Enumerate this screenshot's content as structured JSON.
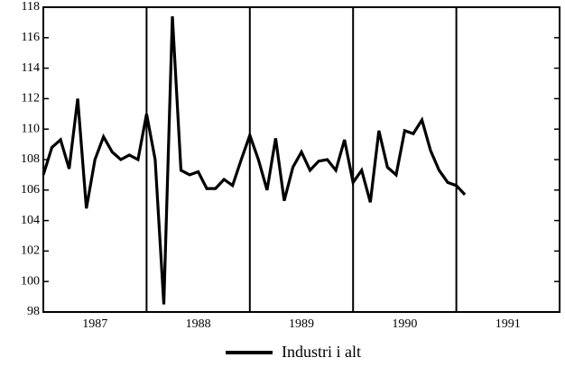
{
  "chart_data": {
    "type": "line",
    "x": [
      1987,
      1987.083,
      1987.167,
      1987.25,
      1987.333,
      1987.417,
      1987.5,
      1987.583,
      1987.667,
      1987.75,
      1987.833,
      1987.917,
      1988,
      1988.083,
      1988.167,
      1988.25,
      1988.333,
      1988.417,
      1988.5,
      1988.583,
      1988.667,
      1988.75,
      1988.833,
      1988.917,
      1989,
      1989.083,
      1989.167,
      1989.25,
      1989.333,
      1989.417,
      1989.5,
      1989.583,
      1989.667,
      1989.75,
      1989.833,
      1989.917,
      1990,
      1990.083,
      1990.167,
      1990.25,
      1990.333,
      1990.417,
      1990.5,
      1990.583,
      1990.667,
      1990.75,
      1990.833,
      1990.917,
      1991,
      1991.083
    ],
    "series": [
      {
        "name": "Industri i alt",
        "color": "#000000",
        "values": [
          107,
          108.8,
          109.3,
          107.4,
          112,
          104.8,
          108,
          109.5,
          108.5,
          108,
          108.3,
          108,
          111,
          108,
          98.5,
          117.4,
          107.3,
          107,
          107.2,
          106.1,
          106.1,
          106.7,
          106.3,
          108,
          109.6,
          108,
          106,
          109.4,
          105.3,
          107.5,
          108.5,
          107.3,
          107.9,
          108,
          107.3,
          109.3,
          106.5,
          107.3,
          105.2,
          109.9,
          107.5,
          107,
          109.9,
          109.7,
          110.6,
          108.6,
          107.3,
          106.5,
          106.3,
          105.7
        ]
      }
    ],
    "xlim": [
      1987,
      1992
    ],
    "xticks": [
      1988,
      1989,
      1990,
      1991
    ],
    "year_labels": [
      1987,
      1988,
      1989,
      1990,
      1991
    ],
    "ylim": [
      98,
      118
    ],
    "yticks": [
      98,
      100,
      102,
      104,
      106,
      108,
      110,
      112,
      114,
      116,
      118
    ],
    "grid": true,
    "legend": "bottom"
  }
}
